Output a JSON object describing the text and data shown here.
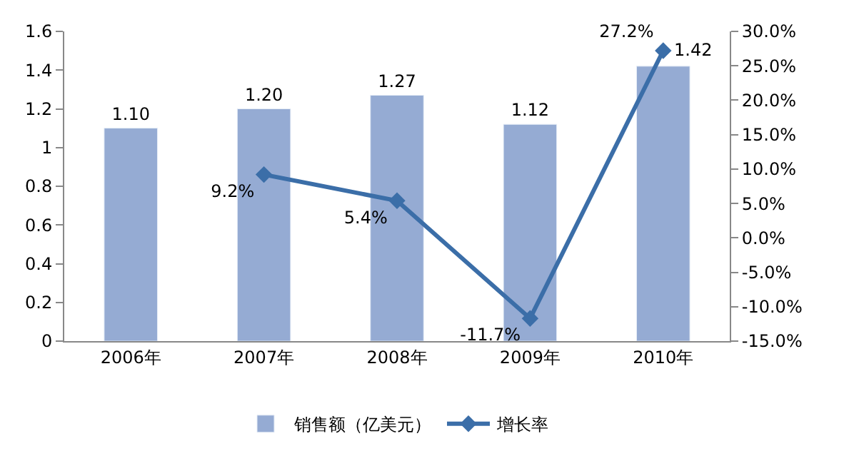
{
  "chart_data": {
    "type": "bar",
    "categories": [
      "2006年",
      "2007年",
      "2008年",
      "2009年",
      "2010年"
    ],
    "series": [
      {
        "name": "销售额（亿美元）",
        "color": "#95abd3",
        "values": [
          1.1,
          1.2,
          1.27,
          1.12,
          1.42
        ],
        "value_labels": [
          "1.10",
          "1.20",
          "1.27",
          "1.12",
          "1.42"
        ]
      },
      {
        "name": "增长率",
        "type": "line",
        "axis": "y2",
        "color": "#3b6ea8",
        "marker": "diamond",
        "values": [
          null,
          9.2,
          5.4,
          -11.7,
          27.2
        ],
        "value_labels": [
          null,
          "9.2%",
          "5.4%",
          "-11.7%",
          "27.2%"
        ]
      }
    ],
    "ylim": [
      0,
      1.6
    ],
    "yticks": [
      0,
      0.2,
      0.4,
      0.6,
      0.8,
      1,
      1.2,
      1.4,
      1.6
    ],
    "y2lim": [
      -15,
      30
    ],
    "y2ticks": [
      {
        "value": -15,
        "label": "-15.0%"
      },
      {
        "value": -10,
        "label": "-10.0%"
      },
      {
        "value": -5,
        "label": "-5.0%"
      },
      {
        "value": 0,
        "label": "0.0%"
      },
      {
        "value": 5,
        "label": "5.0%"
      },
      {
        "value": 10,
        "label": "10.0%"
      },
      {
        "value": 15,
        "label": "15.0%"
      },
      {
        "value": 20,
        "label": "20.0%"
      },
      {
        "value": 25,
        "label": "25.0%"
      },
      {
        "value": 30,
        "label": "30.0%"
      }
    ],
    "legend": "bottom"
  }
}
